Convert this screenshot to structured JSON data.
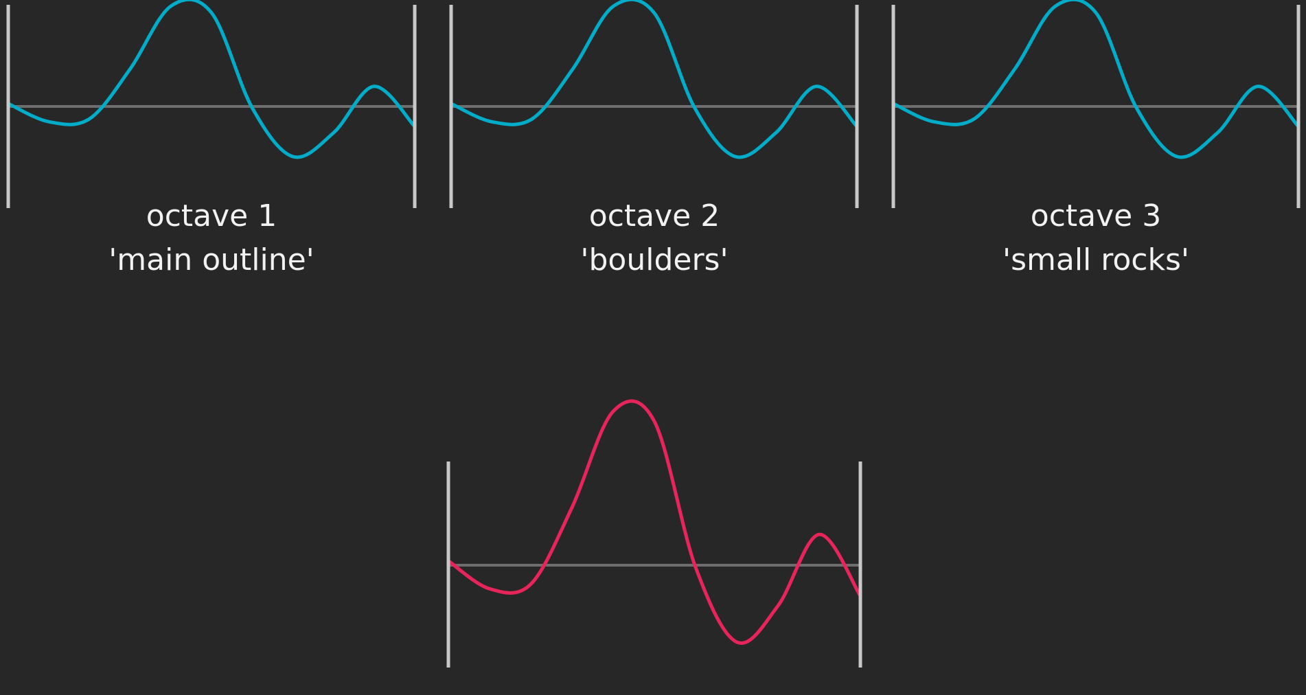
{
  "colors": {
    "background": "#272727",
    "octave_wave": "#00acc8",
    "combined_wave": "#e8255a",
    "axis_line": "#6e6e6e",
    "bounds": "#c8c8c8",
    "text": "#f2f2f2"
  },
  "panels": [
    {
      "title": "octave 1",
      "subtitle": "'main outline'"
    },
    {
      "title": "octave 2",
      "subtitle": "'boulders'"
    },
    {
      "title": "octave 3",
      "subtitle": "'small rocks'"
    }
  ],
  "wave": {
    "samples": [
      0.028,
      -0.153,
      -0.123,
      0.375,
      1.0,
      0.935,
      -0.013,
      -0.5,
      -0.264,
      0.2,
      -0.2
    ]
  }
}
